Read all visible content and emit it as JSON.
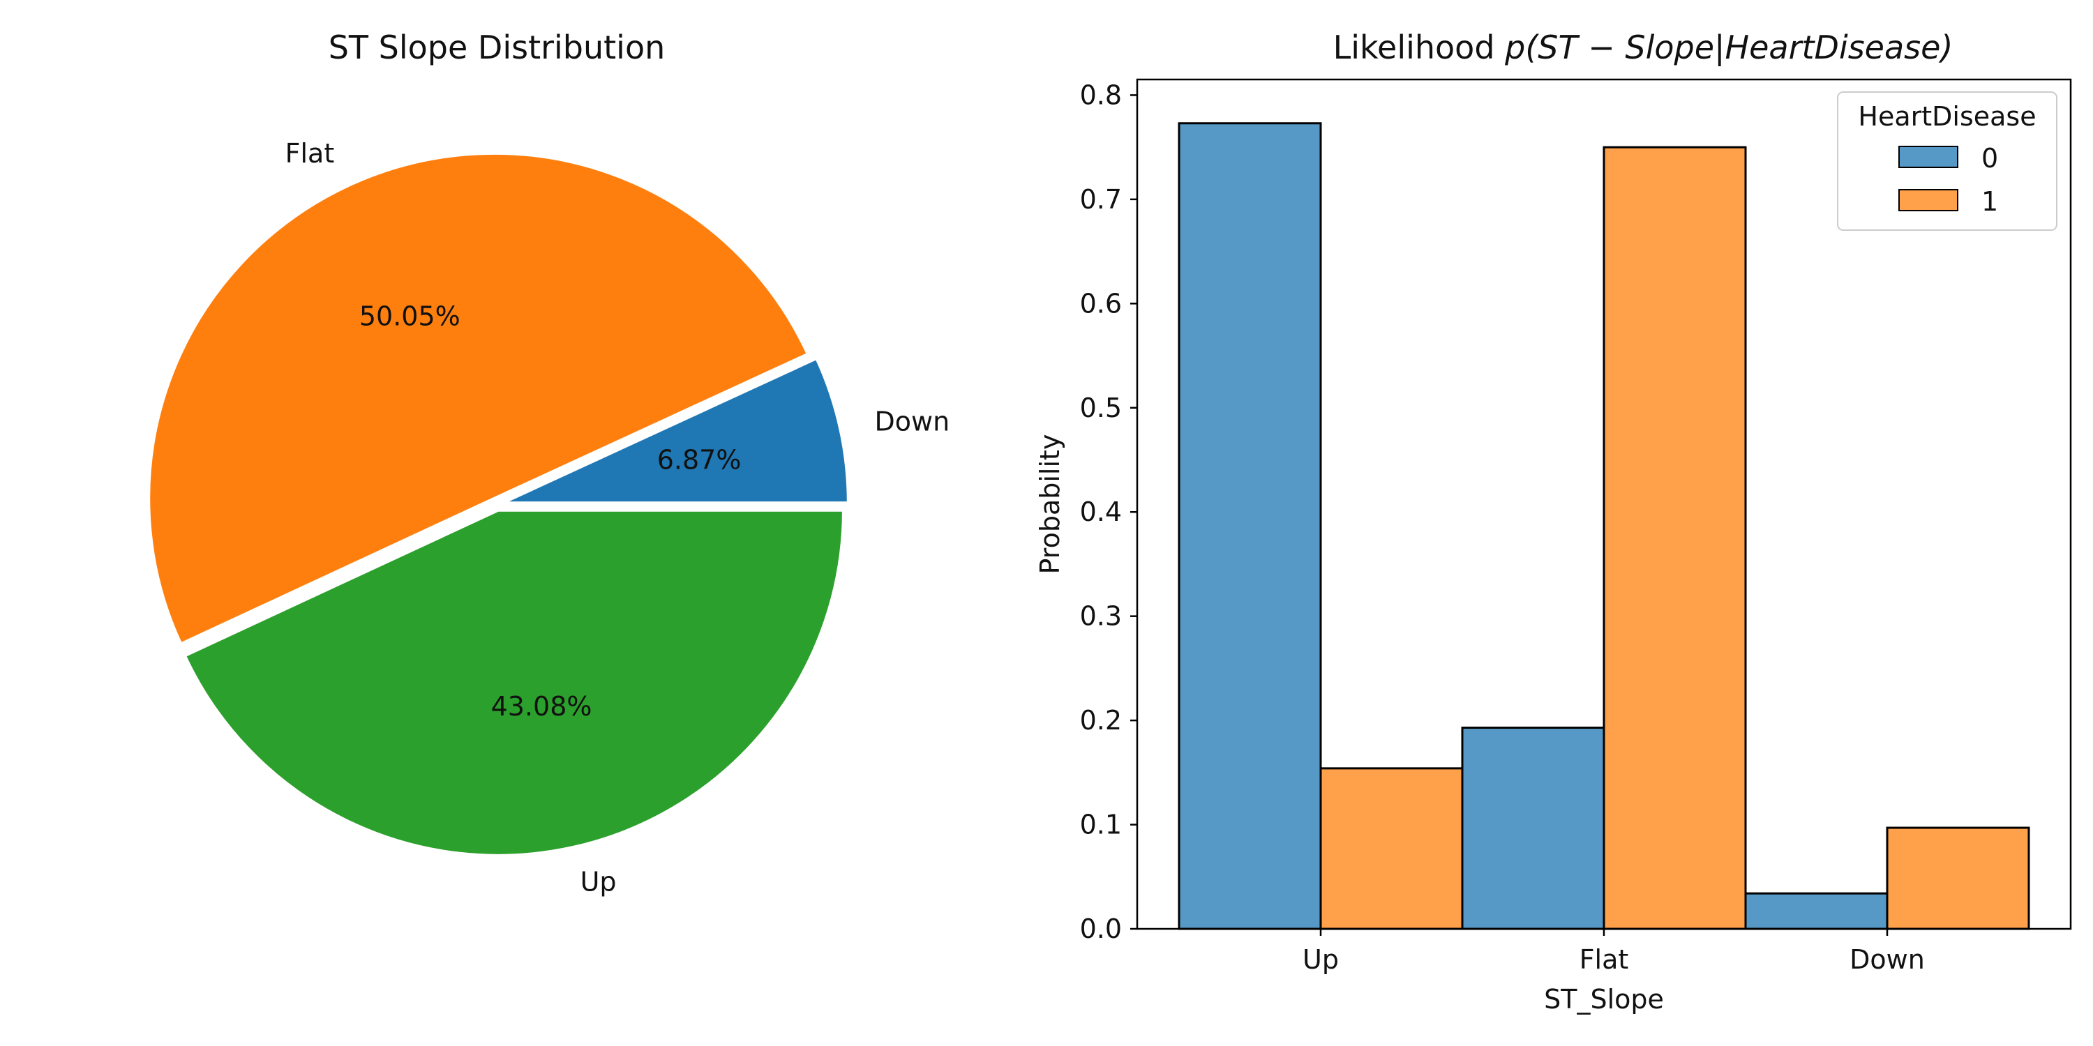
{
  "colors": {
    "blue": "#1f77b4",
    "orange": "#ff7f0e",
    "green": "#2ca02c",
    "bar_blue": "#5699c6",
    "bar_orange": "#ffa04a"
  },
  "chart_data": [
    {
      "type": "pie",
      "title": "ST Slope Distribution",
      "categories": [
        "Down",
        "Flat",
        "Up"
      ],
      "values": [
        6.87,
        50.05,
        43.08
      ],
      "value_labels": [
        "6.87%",
        "50.05%",
        "43.08%"
      ],
      "colors": [
        "#1f77b4",
        "#ff7f0e",
        "#2ca02c"
      ],
      "exploded": true
    },
    {
      "type": "bar",
      "title_prefix": "Likelihood ",
      "title_math": "p(ST − Slope|HeartDisease)",
      "xlabel": "ST_Slope",
      "ylabel": "Probability",
      "categories": [
        "Up",
        "Flat",
        "Down"
      ],
      "series": [
        {
          "name": "0",
          "values": [
            0.773,
            0.193,
            0.034
          ],
          "color": "#5699c6"
        },
        {
          "name": "1",
          "values": [
            0.154,
            0.75,
            0.097
          ],
          "color": "#ffa04a"
        }
      ],
      "ylim": [
        0,
        0.815
      ],
      "yticks": [
        "0.0",
        "0.1",
        "0.2",
        "0.3",
        "0.4",
        "0.5",
        "0.6",
        "0.7",
        "0.8"
      ],
      "legend": {
        "title": "HeartDisease",
        "placement": "top-right"
      },
      "grid": false
    }
  ]
}
